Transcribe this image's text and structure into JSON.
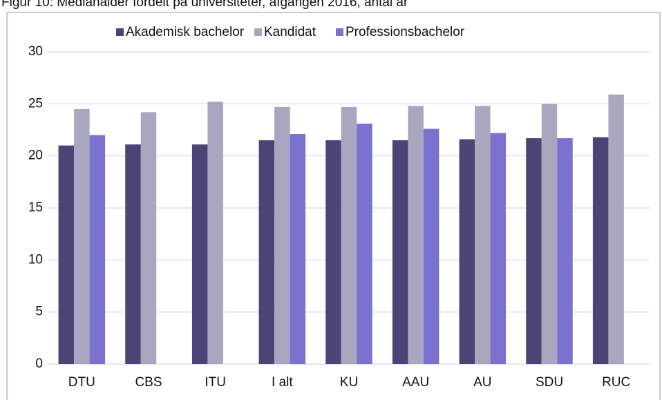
{
  "chart_data": {
    "type": "bar",
    "title": "Figur 10: Medianalder fordelt på universiteter, afgangen 2016, antal år",
    "categories": [
      "DTU",
      "CBS",
      "ITU",
      "I alt",
      "KU",
      "AAU",
      "AU",
      "SDU",
      "RUC"
    ],
    "series": [
      {
        "name": "Akademisk bachelor",
        "color": "#4b4476",
        "values": [
          21.0,
          21.1,
          21.1,
          21.5,
          21.5,
          21.5,
          21.6,
          21.7,
          21.8
        ]
      },
      {
        "name": "Kandidat",
        "color": "#a9a6bf",
        "values": [
          24.5,
          24.2,
          25.2,
          24.7,
          24.7,
          24.8,
          24.8,
          25.0,
          25.9
        ]
      },
      {
        "name": "Professionsbachelor",
        "color": "#7b72cf",
        "values": [
          22.0,
          null,
          null,
          22.1,
          23.1,
          22.6,
          22.2,
          21.7,
          null
        ]
      }
    ],
    "ylim": [
      0,
      30
    ],
    "yticks": [
      0,
      5,
      10,
      15,
      20,
      25,
      30
    ],
    "grid": true,
    "legend": "top"
  }
}
